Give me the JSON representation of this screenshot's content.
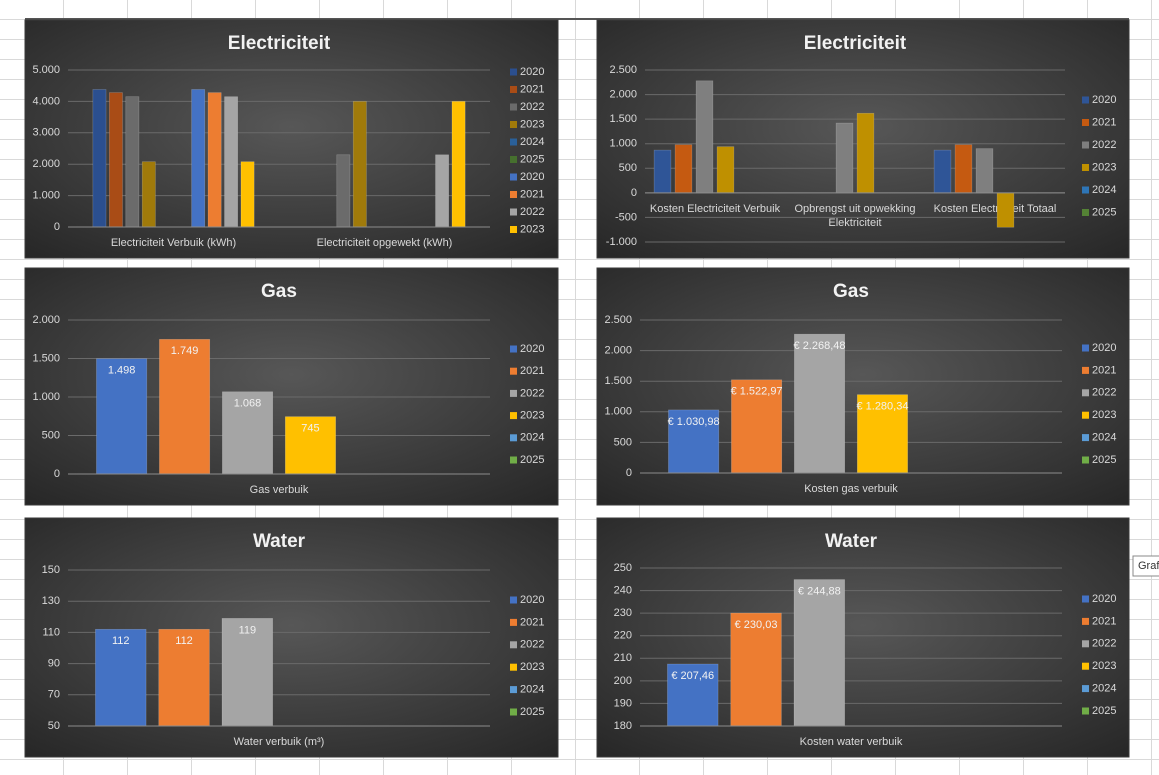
{
  "chart_data": [
    {
      "type": "bar",
      "title": "Electriciteit",
      "categories": [
        "Electriciteit Verbuik  (kWh)",
        "Electriciteit opgewekt  (kWh)"
      ],
      "ylim": [
        0,
        5000
      ],
      "yticks": [
        0,
        {
          "value": 1000,
          "label": "1.000"
        },
        {
          "value": 2000,
          "label": "2.000"
        },
        {
          "value": 3000,
          "label": "3.000"
        },
        {
          "value": 4000,
          "label": "4.000"
        },
        {
          "value": 5000,
          "label": "5.000"
        }
      ],
      "grid": true,
      "series": [
        {
          "name": "2020",
          "color": "#2b4f8f",
          "values": [
            4380,
            null
          ]
        },
        {
          "name": "2021",
          "color": "#a94c16",
          "values": [
            4280,
            null
          ]
        },
        {
          "name": "2022",
          "color": "#6b6b6b",
          "values": [
            4150,
            2300
          ]
        },
        {
          "name": "2023",
          "color": "#a07a0a",
          "values": [
            2080,
            4000
          ]
        },
        {
          "name": "2024",
          "color": "#2a6099",
          "values": [
            null,
            null
          ]
        },
        {
          "name": "2025",
          "color": "#46702e",
          "values": [
            null,
            null
          ]
        },
        {
          "name": "2020",
          "color": "#4472c4",
          "values": [
            4380,
            null
          ]
        },
        {
          "name": "2021",
          "color": "#ed7d31",
          "values": [
            4280,
            null
          ]
        },
        {
          "name": "2022",
          "color": "#a5a5a5",
          "values": [
            4150,
            2300
          ]
        },
        {
          "name": "2023",
          "color": "#ffc000",
          "values": [
            2080,
            4000
          ]
        }
      ]
    },
    {
      "type": "bar",
      "title": "Electriciteit",
      "categories": [
        "Kosten Electriciteit Verbuik",
        "Opbrengst uit opwekking Elektriciteit",
        "Kosten Electriciteit Totaal"
      ],
      "ylim": [
        -1000,
        2500
      ],
      "yticks": [
        {
          "value": -1000,
          "label": "-1.000"
        },
        -500,
        0,
        500,
        {
          "value": 1000,
          "label": "1.000"
        },
        {
          "value": 1500,
          "label": "1.500"
        },
        {
          "value": 2000,
          "label": "2.000"
        },
        {
          "value": 2500,
          "label": "2.500"
        }
      ],
      "grid": true,
      "series": [
        {
          "name": "2020",
          "color": "#2f5597",
          "values": [
            870,
            null,
            870
          ]
        },
        {
          "name": "2021",
          "color": "#c55a11",
          "values": [
            980,
            null,
            980
          ]
        },
        {
          "name": "2022",
          "color": "#7f7f7f",
          "values": [
            2280,
            1420,
            900
          ]
        },
        {
          "name": "2023",
          "color": "#bf9000",
          "values": [
            940,
            1620,
            -700
          ]
        },
        {
          "name": "2024",
          "color": "#2e75b6",
          "values": [
            null,
            null,
            null
          ]
        },
        {
          "name": "2025",
          "color": "#548235",
          "values": [
            null,
            null,
            null
          ]
        }
      ]
    },
    {
      "type": "bar",
      "title": "Gas",
      "categories": [
        "Gas verbuik"
      ],
      "ylim": [
        0,
        2000
      ],
      "yticks": [
        0,
        500,
        {
          "value": 1000,
          "label": "1.000"
        },
        {
          "value": 1500,
          "label": "1.500"
        },
        {
          "value": 2000,
          "label": "2.000"
        }
      ],
      "grid": true,
      "series": [
        {
          "name": "2020",
          "color": "#4472c4",
          "values": [
            1498
          ],
          "value_labels": [
            "1.498"
          ]
        },
        {
          "name": "2021",
          "color": "#ed7d31",
          "values": [
            1749
          ],
          "value_labels": [
            "1.749"
          ]
        },
        {
          "name": "2022",
          "color": "#a5a5a5",
          "values": [
            1068
          ],
          "value_labels": [
            "1.068"
          ]
        },
        {
          "name": "2023",
          "color": "#ffc000",
          "values": [
            745
          ]
        },
        {
          "name": "2024",
          "color": "#5b9bd5",
          "values": [
            null
          ]
        },
        {
          "name": "2025",
          "color": "#70ad47",
          "values": [
            null
          ]
        }
      ]
    },
    {
      "type": "bar",
      "title": "Gas",
      "categories": [
        "Kosten gas verbuik"
      ],
      "ylim": [
        0,
        2500
      ],
      "yticks": [
        0,
        500,
        {
          "value": 1000,
          "label": "1.000"
        },
        {
          "value": 1500,
          "label": "1.500"
        },
        {
          "value": 2000,
          "label": "2.000"
        },
        {
          "value": 2500,
          "label": "2.500"
        }
      ],
      "grid": true,
      "series": [
        {
          "name": "2020",
          "color": "#4472c4",
          "values": [
            1030.98
          ],
          "value_labels": [
            "€ 1.030,98"
          ]
        },
        {
          "name": "2021",
          "color": "#ed7d31",
          "values": [
            1522.97
          ],
          "value_labels": [
            "€ 1.522,97"
          ]
        },
        {
          "name": "2022",
          "color": "#a5a5a5",
          "values": [
            2268.48
          ],
          "value_labels": [
            "€ 2.268,48"
          ]
        },
        {
          "name": "2023",
          "color": "#ffc000",
          "values": [
            1280.34
          ],
          "value_labels": [
            "€ 1.280,34"
          ]
        },
        {
          "name": "2024",
          "color": "#5b9bd5",
          "values": [
            null
          ]
        },
        {
          "name": "2025",
          "color": "#70ad47",
          "values": [
            null
          ]
        }
      ]
    },
    {
      "type": "bar",
      "title": "Water",
      "categories": [
        "Water verbuik (m³)"
      ],
      "ylim": [
        50,
        150
      ],
      "yticks": [
        50,
        70,
        90,
        110,
        130,
        150
      ],
      "grid": true,
      "series": [
        {
          "name": "2020",
          "color": "#4472c4",
          "values": [
            112
          ]
        },
        {
          "name": "2021",
          "color": "#ed7d31",
          "values": [
            112
          ]
        },
        {
          "name": "2022",
          "color": "#a5a5a5",
          "values": [
            119
          ]
        },
        {
          "name": "2023",
          "color": "#ffc000",
          "values": [
            null
          ]
        },
        {
          "name": "2024",
          "color": "#5b9bd5",
          "values": [
            null
          ]
        },
        {
          "name": "2025",
          "color": "#70ad47",
          "values": [
            null
          ]
        }
      ]
    },
    {
      "type": "bar",
      "title": "Water",
      "categories": [
        "Kosten water verbuik"
      ],
      "ylim": [
        180,
        250
      ],
      "yticks": [
        180,
        190,
        200,
        210,
        220,
        230,
        240,
        250
      ],
      "grid": true,
      "series": [
        {
          "name": "2020",
          "color": "#4472c4",
          "values": [
            207.46
          ],
          "value_labels": [
            "€ 207,46"
          ]
        },
        {
          "name": "2021",
          "color": "#ed7d31",
          "values": [
            230.03
          ],
          "value_labels": [
            "€ 230,03"
          ]
        },
        {
          "name": "2022",
          "color": "#a5a5a5",
          "values": [
            244.88
          ],
          "value_labels": [
            "€ 244,88"
          ]
        },
        {
          "name": "2023",
          "color": "#ffc000",
          "values": [
            null
          ]
        },
        {
          "name": "2024",
          "color": "#5b9bd5",
          "values": [
            null
          ]
        },
        {
          "name": "2025",
          "color": "#70ad47",
          "values": [
            null
          ]
        }
      ]
    }
  ],
  "tooltip": "Graf"
}
